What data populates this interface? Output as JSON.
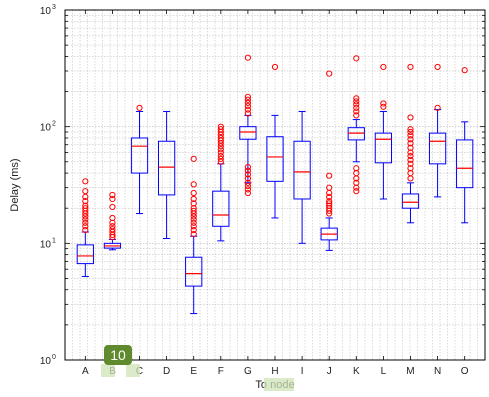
{
  "chart_data": {
    "type": "box",
    "ylabel": "Delay (ms)",
    "xlabel": "To node",
    "yscale": "log",
    "ylim": [
      1,
      1000
    ],
    "ytick_exponents": [
      "0",
      "1",
      "2",
      "3"
    ],
    "ytick_base": "10",
    "grid": true,
    "categories": [
      "A",
      "B",
      "C",
      "D",
      "E",
      "F",
      "G",
      "H",
      "I",
      "J",
      "K",
      "L",
      "M",
      "N",
      "O"
    ],
    "boxes": [
      {
        "category": "A",
        "whisker_low": 5.2,
        "q1": 6.7,
        "median": 7.8,
        "q3": 9.7,
        "whisker_high": 12.5,
        "outliers": [
          13,
          14,
          15,
          16,
          17,
          18,
          19,
          20,
          21,
          23,
          25,
          28,
          34
        ]
      },
      {
        "category": "B",
        "whisker_low": 8.8,
        "q1": 9.1,
        "median": 9.5,
        "q3": 10.0,
        "whisker_high": 10.8,
        "outliers": [
          11.3,
          11.8,
          12.5,
          13.2,
          14,
          15,
          16.5,
          20.5,
          24,
          26
        ]
      },
      {
        "category": "C",
        "whisker_low": 18,
        "q1": 40,
        "median": 68,
        "q3": 80,
        "whisker_high": 135,
        "outliers": [
          145
        ]
      },
      {
        "category": "D",
        "whisker_low": 11,
        "q1": 26,
        "median": 45,
        "q3": 75,
        "whisker_high": 135,
        "outliers": []
      },
      {
        "category": "E",
        "whisker_low": 2.5,
        "q1": 4.3,
        "median": 5.5,
        "q3": 7.6,
        "whisker_high": 11.5,
        "outliers": [
          12,
          13,
          14,
          15,
          16,
          17,
          18,
          19,
          20,
          22,
          24,
          27,
          32,
          53
        ]
      },
      {
        "category": "F",
        "whisker_low": 10.5,
        "q1": 14,
        "median": 17.5,
        "q3": 28,
        "whisker_high": 48,
        "outliers": [
          50,
          53,
          56,
          60,
          64,
          68,
          72,
          76,
          80,
          85,
          90,
          95,
          100
        ]
      },
      {
        "category": "G",
        "whisker_low": 33,
        "q1": 78,
        "median": 90,
        "q3": 100,
        "whisker_high": 125,
        "outliers": [
          27,
          29,
          31,
          33,
          36,
          39,
          42,
          45,
          130,
          140,
          150,
          160,
          170,
          180,
          390
        ]
      },
      {
        "category": "H",
        "whisker_low": 16.5,
        "q1": 34,
        "median": 55,
        "q3": 82,
        "whisker_high": 125,
        "outliers": [
          325
        ]
      },
      {
        "category": "I",
        "whisker_low": 10,
        "q1": 24,
        "median": 41,
        "q3": 75,
        "whisker_high": 135,
        "outliers": []
      },
      {
        "category": "J",
        "whisker_low": 8.7,
        "q1": 10.7,
        "median": 12,
        "q3": 13.5,
        "whisker_high": 16.5,
        "outliers": [
          18,
          19,
          20,
          21,
          22,
          23,
          25,
          27,
          30,
          38,
          285
        ]
      },
      {
        "category": "K",
        "whisker_low": 50,
        "q1": 77,
        "median": 88,
        "q3": 98,
        "whisker_high": 115,
        "outliers": [
          28,
          30,
          33,
          36,
          40,
          44,
          125,
          135,
          145,
          155,
          165,
          175,
          385
        ]
      },
      {
        "category": "L",
        "whisker_low": 24,
        "q1": 49,
        "median": 78,
        "q3": 88,
        "whisker_high": 135,
        "outliers": [
          148,
          158,
          325
        ]
      },
      {
        "category": "M",
        "whisker_low": 15,
        "q1": 20,
        "median": 22.5,
        "q3": 26.5,
        "whisker_high": 33,
        "outliers": [
          36,
          40,
          44,
          48,
          52,
          56,
          60,
          66,
          72,
          78,
          84,
          90,
          95,
          120,
          325
        ]
      },
      {
        "category": "N",
        "whisker_low": 25,
        "q1": 48,
        "median": 75,
        "q3": 88,
        "whisker_high": 140,
        "outliers": [
          145,
          325
        ]
      },
      {
        "category": "O",
        "whisker_low": 15,
        "q1": 30,
        "median": 44,
        "q3": 77,
        "whisker_high": 110,
        "outliers": [
          305
        ]
      }
    ],
    "colors": {
      "box": "#0000ff",
      "median": "#ff0000",
      "outlier": "#ff0000",
      "grid": "#b4b4b4",
      "axis": "#000000"
    }
  },
  "overlay": {
    "badge_text": "10",
    "highlight_color": "#cfe3b6",
    "badge_color": "#5f8a2e"
  }
}
